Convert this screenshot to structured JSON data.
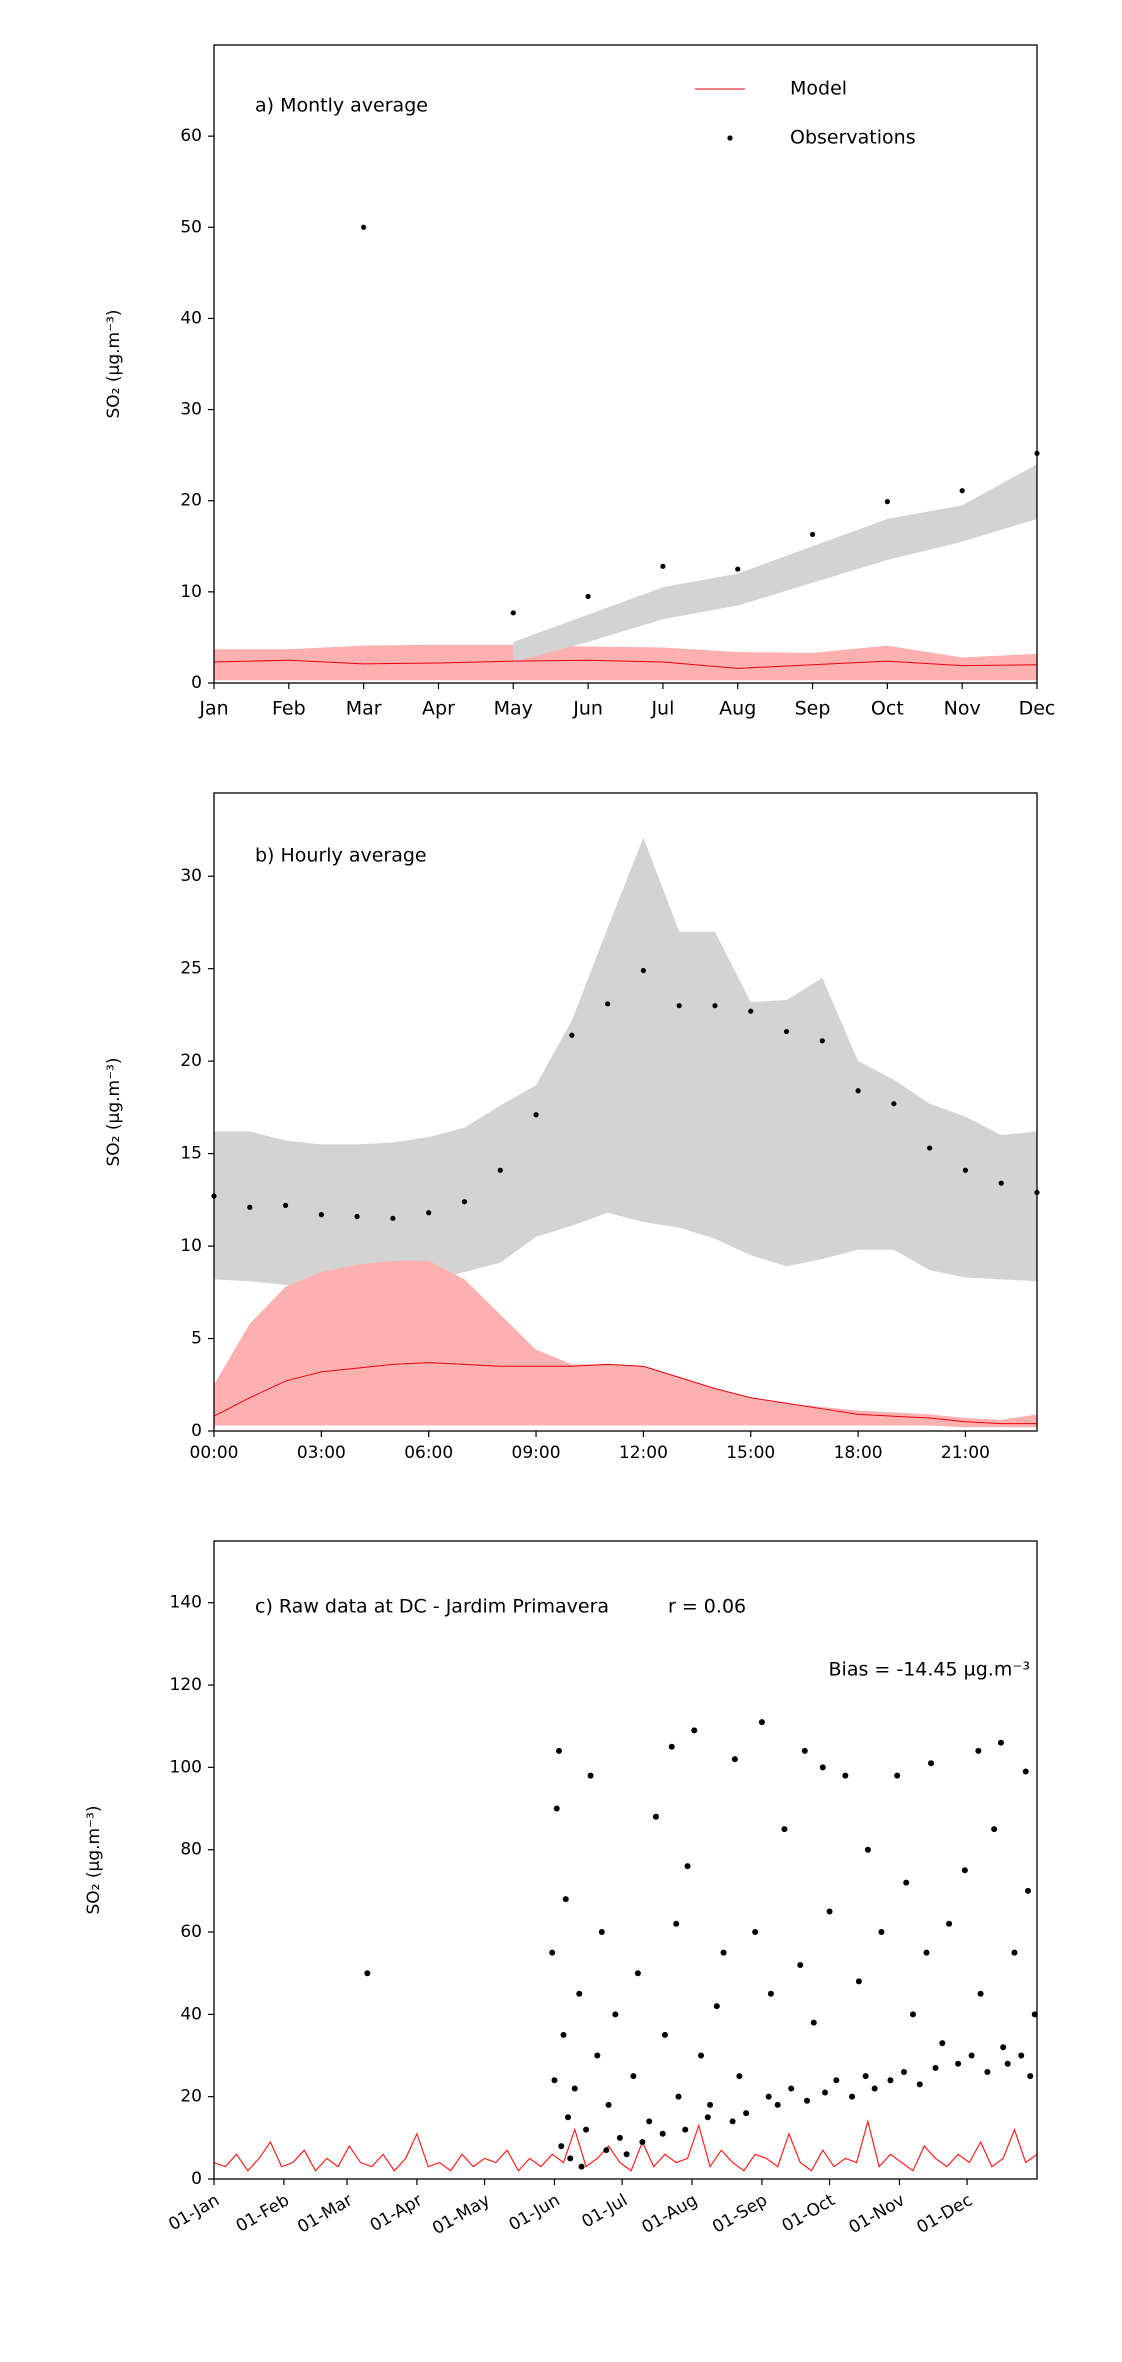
{
  "chart_data": [
    {
      "type": "line",
      "annotations": [
        "a) Montly average"
      ],
      "ylabel": "SO₂ (µg.m⁻³)",
      "categories": [
        "Jan",
        "Feb",
        "Mar",
        "Apr",
        "May",
        "Jun",
        "Jul",
        "Aug",
        "Sep",
        "Oct",
        "Nov",
        "Dec"
      ],
      "ylim": [
        0,
        70
      ],
      "yticks": [
        0,
        10,
        20,
        30,
        40,
        50,
        60
      ],
      "legend": "upper right",
      "series": [
        {
          "name": "Model",
          "type": "line",
          "color": "#e8000b",
          "band_color": "#fdb0b0",
          "values": [
            2.3,
            2.5,
            2.1,
            2.2,
            2.4,
            2.5,
            2.3,
            1.6,
            2.0,
            2.4,
            1.9,
            2.0
          ],
          "lower": [
            0.3,
            0.3,
            0.3,
            0.3,
            0.3,
            0.3,
            0.3,
            0.3,
            0.3,
            0.3,
            0.3,
            0.3
          ],
          "upper": [
            3.7,
            3.7,
            4.1,
            4.2,
            4.2,
            4.0,
            3.9,
            3.4,
            3.3,
            4.1,
            2.8,
            3.2
          ]
        },
        {
          "name": "Observations",
          "type": "scatter",
          "color": "#000000",
          "band_color": "#d3d3d3",
          "values": [
            null,
            null,
            50,
            null,
            7.7,
            9.5,
            12.8,
            12.5,
            16.3,
            19.9,
            21.1,
            25.2
          ],
          "lower": [
            null,
            null,
            null,
            null,
            2.3,
            4.5,
            7.0,
            8.5,
            11.0,
            13.5,
            15.5,
            18.0
          ],
          "upper": [
            null,
            null,
            null,
            null,
            4.5,
            7.5,
            10.5,
            12.0,
            15.0,
            18.0,
            19.5,
            24.0
          ]
        }
      ]
    },
    {
      "type": "line",
      "annotations": [
        "b) Hourly average"
      ],
      "ylabel": "SO₂ (µg.m⁻³)",
      "x": [
        0,
        1,
        2,
        3,
        4,
        5,
        6,
        7,
        8,
        9,
        10,
        11,
        12,
        13,
        14,
        15,
        16,
        17,
        18,
        19,
        20,
        21,
        22,
        23
      ],
      "xlim": [
        0,
        23
      ],
      "xticks": [
        {
          "value": 0,
          "label": "00:00"
        },
        {
          "value": 3,
          "label": "03:00"
        },
        {
          "value": 6,
          "label": "06:00"
        },
        {
          "value": 9,
          "label": "09:00"
        },
        {
          "value": 12,
          "label": "12:00"
        },
        {
          "value": 15,
          "label": "15:00"
        },
        {
          "value": 18,
          "label": "18:00"
        },
        {
          "value": 21,
          "label": "21:00"
        }
      ],
      "ylim": [
        0,
        34.5
      ],
      "yticks": [
        0,
        5,
        10,
        15,
        20,
        25,
        30
      ],
      "series": [
        {
          "name": "Observations",
          "type": "scatter",
          "color": "#000000",
          "band_color": "#d3d3d3",
          "values": [
            12.7,
            12.1,
            12.2,
            11.7,
            11.6,
            11.5,
            11.8,
            12.4,
            14.1,
            17.1,
            21.4,
            23.1,
            24.9,
            23.0,
            23.0,
            22.7,
            21.6,
            21.1,
            18.4,
            17.7,
            15.3,
            14.1,
            13.4,
            12.9
          ],
          "lower": [
            8.2,
            8.1,
            7.9,
            7.6,
            7.9,
            7.7,
            8.1,
            8.6,
            9.1,
            10.5,
            11.1,
            11.8,
            11.3,
            11.0,
            10.4,
            9.5,
            8.9,
            9.3,
            9.8,
            9.8,
            8.7,
            8.3,
            8.2,
            8.1
          ],
          "upper": [
            16.2,
            16.2,
            15.7,
            15.5,
            15.5,
            15.6,
            15.9,
            16.4,
            17.6,
            18.7,
            22.2,
            27.2,
            32.1,
            27.0,
            27.0,
            23.2,
            23.3,
            24.5,
            20.0,
            19.0,
            17.7,
            17.0,
            16.0,
            16.2
          ]
        },
        {
          "name": "Model",
          "type": "line",
          "color": "#e8000b",
          "band_color": "#fdb0b0",
          "values": [
            0.8,
            1.8,
            2.7,
            3.2,
            3.4,
            3.6,
            3.7,
            3.6,
            3.5,
            3.5,
            3.5,
            3.6,
            3.5,
            2.9,
            2.3,
            1.8,
            1.5,
            1.2,
            0.9,
            0.8,
            0.7,
            0.5,
            0.4,
            0.4
          ],
          "lower": [
            0.3,
            0.3,
            0.3,
            0.3,
            0.3,
            0.3,
            0.3,
            0.3,
            0.3,
            0.3,
            0.3,
            0.3,
            0.3,
            0.3,
            0.3,
            0.3,
            0.3,
            0.3,
            0.3,
            0.3,
            0.3,
            0.2,
            0.2,
            0.2
          ],
          "upper": [
            2.5,
            5.8,
            7.8,
            8.6,
            9.0,
            9.2,
            9.2,
            8.2,
            6.3,
            4.4,
            3.6,
            3.6,
            3.5,
            2.9,
            2.3,
            1.8,
            1.5,
            1.3,
            1.1,
            1.0,
            0.9,
            0.7,
            0.6,
            0.9
          ]
        }
      ]
    },
    {
      "type": "line",
      "annotations": [
        "c) Raw data at DC - Jardim Primavera",
        "r = 0.06",
        "Bias = -14.45 µg.m⁻³"
      ],
      "ylabel": "SO₂ (µg.m⁻³)",
      "xlim": [
        0,
        365
      ],
      "xtick_rotation": 30,
      "xticks": [
        {
          "value": 0,
          "label": "01-Jan"
        },
        {
          "value": 31,
          "label": "01-Feb"
        },
        {
          "value": 59,
          "label": "01-Mar"
        },
        {
          "value": 90,
          "label": "01-Apr"
        },
        {
          "value": 120,
          "label": "01-May"
        },
        {
          "value": 151,
          "label": "01-Jun"
        },
        {
          "value": 181,
          "label": "01-Jul"
        },
        {
          "value": 212,
          "label": "01-Aug"
        },
        {
          "value": 243,
          "label": "01-Sep"
        },
        {
          "value": 273,
          "label": "01-Oct"
        },
        {
          "value": 304,
          "label": "01-Nov"
        },
        {
          "value": 334,
          "label": "01-Dec"
        }
      ],
      "ylim": [
        0,
        155
      ],
      "yticks": [
        0,
        20,
        40,
        60,
        80,
        100,
        120,
        140
      ],
      "series": [
        {
          "name": "Model",
          "type": "line",
          "color": "#ff2020",
          "x": [
            0,
            5,
            10,
            15,
            20,
            25,
            30,
            35,
            40,
            45,
            50,
            55,
            60,
            65,
            70,
            75,
            80,
            85,
            90,
            95,
            100,
            105,
            110,
            115,
            120,
            125,
            130,
            135,
            140,
            145,
            150,
            155,
            160,
            165,
            170,
            175,
            180,
            185,
            190,
            195,
            200,
            205,
            210,
            215,
            220,
            225,
            230,
            235,
            240,
            245,
            250,
            255,
            260,
            265,
            270,
            275,
            280,
            285,
            290,
            295,
            300,
            305,
            310,
            315,
            320,
            325,
            330,
            335,
            340,
            345,
            350,
            355,
            360,
            365
          ],
          "values": [
            4,
            3,
            6,
            2,
            5,
            9,
            3,
            4,
            7,
            2,
            5,
            3,
            8,
            4,
            3,
            6,
            2,
            5,
            11,
            3,
            4,
            2,
            6,
            3,
            5,
            4,
            7,
            2,
            5,
            3,
            6,
            4,
            12,
            3,
            5,
            8,
            4,
            2,
            9,
            3,
            6,
            4,
            5,
            13,
            3,
            7,
            4,
            2,
            6,
            5,
            3,
            11,
            4,
            2,
            7,
            3,
            5,
            4,
            14,
            3,
            6,
            4,
            2,
            8,
            5,
            3,
            6,
            4,
            9,
            3,
            5,
            12,
            4,
            6
          ]
        },
        {
          "name": "Observations",
          "type": "scatter",
          "color": "#000000",
          "x": [
            68,
            150,
            151,
            152,
            153,
            154,
            155,
            156,
            157,
            158,
            160,
            162,
            163,
            165,
            167,
            170,
            172,
            174,
            175,
            178,
            180,
            183,
            186,
            188,
            190,
            193,
            196,
            199,
            200,
            203,
            205,
            206,
            209,
            210,
            213,
            216,
            219,
            220,
            223,
            226,
            230,
            231,
            233,
            236,
            240,
            243,
            246,
            247,
            250,
            253,
            256,
            260,
            262,
            263,
            266,
            270,
            271,
            273,
            276,
            280,
            283,
            286,
            289,
            290,
            293,
            296,
            300,
            303,
            306,
            307,
            310,
            313,
            316,
            318,
            320,
            323,
            326,
            330,
            333,
            336,
            339,
            340,
            343,
            346,
            349,
            350,
            352,
            355,
            358,
            360,
            361,
            362,
            364
          ],
          "values": [
            50,
            55,
            24,
            90,
            104,
            8,
            35,
            68,
            15,
            5,
            22,
            45,
            3,
            12,
            98,
            30,
            60,
            7,
            18,
            40,
            10,
            6,
            25,
            50,
            9,
            14,
            88,
            11,
            35,
            105,
            62,
            20,
            12,
            76,
            109,
            30,
            15,
            18,
            42,
            55,
            14,
            102,
            25,
            16,
            60,
            111,
            20,
            45,
            18,
            85,
            22,
            52,
            104,
            19,
            38,
            100,
            21,
            65,
            24,
            98,
            20,
            48,
            25,
            80,
            22,
            60,
            24,
            98,
            26,
            72,
            40,
            23,
            55,
            101,
            27,
            33,
            62,
            28,
            75,
            30,
            104,
            45,
            26,
            85,
            106,
            32,
            28,
            55,
            30,
            99,
            70,
            25,
            40
          ]
        }
      ]
    }
  ]
}
